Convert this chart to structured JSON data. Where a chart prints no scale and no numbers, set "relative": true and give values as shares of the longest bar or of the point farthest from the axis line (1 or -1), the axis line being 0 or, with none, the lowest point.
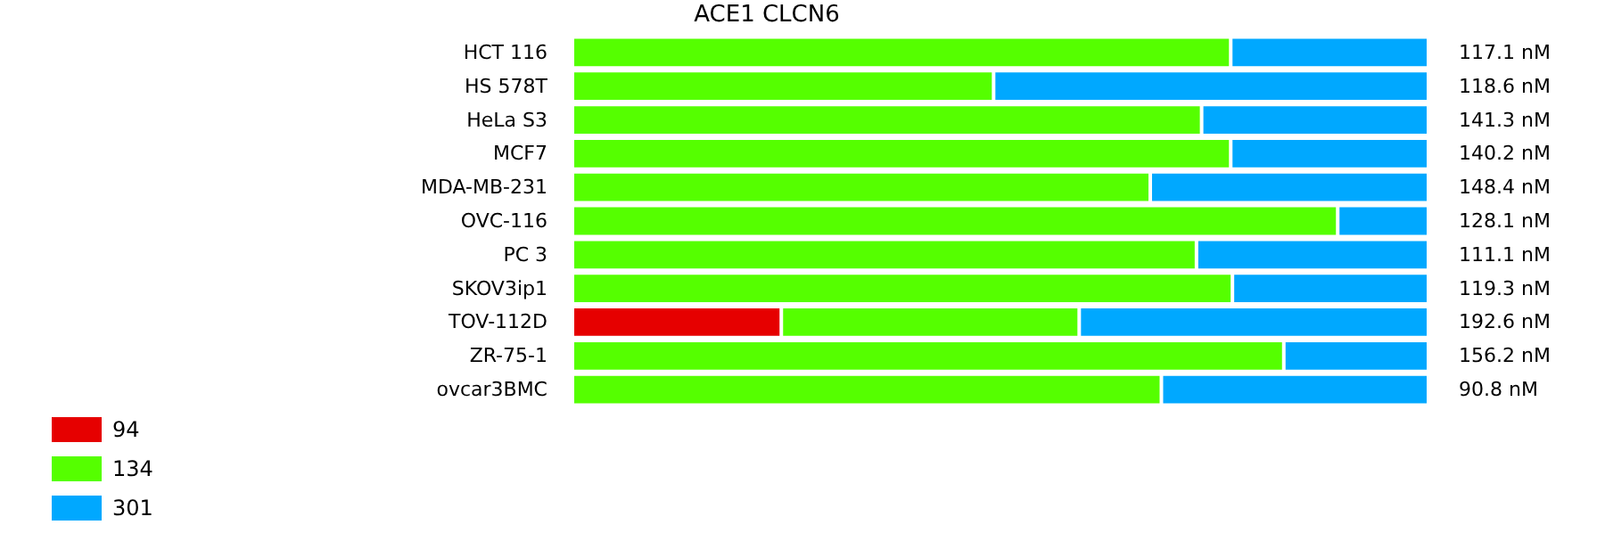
{
  "chart_data": {
    "type": "bar",
    "title": "ACE1 CLCN6",
    "orientation": "horizontal",
    "stacked": true,
    "relative": true,
    "legend": "bottom left",
    "categories": [
      "HCT 116",
      "HS 578T",
      "HeLa S3",
      "MCF7",
      "MDA-MB-231",
      "OVC-116",
      "PC 3",
      "SKOV3ip1",
      "TOV-112D",
      "ZR-75-1",
      "ovcar3BMC"
    ],
    "series": [
      {
        "name": "94",
        "color": "#e60000",
        "values": [
          0,
          0,
          0,
          0,
          0,
          0,
          0,
          0,
          0.244,
          0,
          0
        ]
      },
      {
        "name": "134",
        "color": "#55ff00",
        "values": [
          0.769,
          0.492,
          0.735,
          0.769,
          0.675,
          0.894,
          0.729,
          0.771,
          0.348,
          0.831,
          0.688
        ]
      },
      {
        "name": "301",
        "color": "#00a8ff",
        "values": [
          0.231,
          0.508,
          0.265,
          0.231,
          0.325,
          0.106,
          0.271,
          0.229,
          0.408,
          0.169,
          0.312
        ]
      }
    ],
    "grid": false,
    "annotations": [
      "117.1 nM",
      "118.6 nM",
      "141.3 nM",
      "140.2 nM",
      "148.4 nM",
      "128.1 nM",
      "111.1 nM",
      "119.3 nM",
      "192.6 nM",
      "156.2 nM",
      "90.8 nM"
    ]
  }
}
